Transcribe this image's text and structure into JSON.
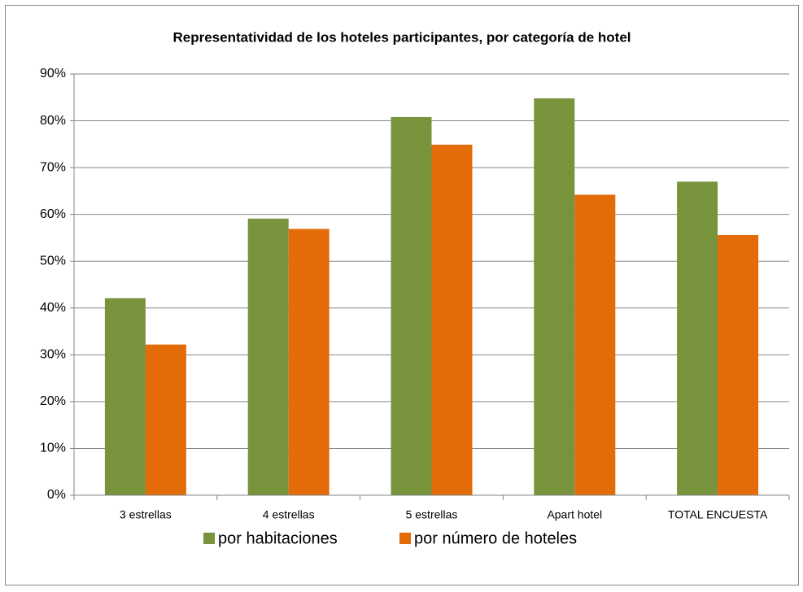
{
  "chart_data": {
    "type": "bar",
    "title": "Representatividad de los hoteles participantes, por categoría de hotel",
    "categories": [
      "3 estrellas",
      "4 estrellas",
      "5 estrellas",
      "Apart hotel",
      "TOTAL ENCUESTA"
    ],
    "series": [
      {
        "name": "por habitaciones",
        "color": "#77933c",
        "values": [
          42.1,
          59.1,
          80.8,
          84.8,
          67
        ]
      },
      {
        "name": "por número de hoteles",
        "color": "#e36c09",
        "values": [
          32.2,
          56.9,
          74.9,
          64.2,
          55.6
        ]
      }
    ],
    "ylim": [
      0,
      90
    ],
    "yticks": [
      {
        "value": 0,
        "label": "0%"
      },
      {
        "value": 10,
        "label": "10%"
      },
      {
        "value": 20,
        "label": "20%"
      },
      {
        "value": 30,
        "label": "30%"
      },
      {
        "value": 40,
        "label": "40%"
      },
      {
        "value": 50,
        "label": "50%"
      },
      {
        "value": 60,
        "label": "60%"
      },
      {
        "value": 70,
        "label": "70%"
      },
      {
        "value": 80,
        "label": "80%"
      },
      {
        "value": 90,
        "label": "90%"
      }
    ],
    "grid": true,
    "legend": "bottom"
  }
}
